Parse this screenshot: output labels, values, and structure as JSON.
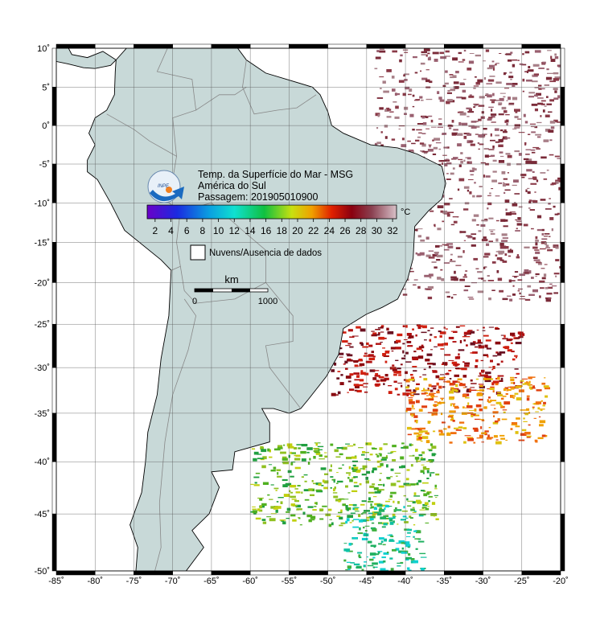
{
  "header": {
    "title": "Temp. da Superfície do Mar - MSG",
    "region": "América do Sul",
    "pass": "Passagem: 201905010900"
  },
  "logo": {
    "text": "INPE"
  },
  "colorbar": {
    "min": 1,
    "max": 32.5,
    "ticks": [
      2,
      4,
      6,
      8,
      10,
      12,
      14,
      16,
      18,
      20,
      22,
      24,
      26,
      28,
      30,
      32
    ],
    "unit": "°C"
  },
  "legend": {
    "text": "Nuvens/Ausencia de dados"
  },
  "scale_bar": {
    "unit": "km",
    "start": "0",
    "end": "1000"
  },
  "map": {
    "lon_range": [
      -85,
      -20
    ],
    "lat_range": [
      -50,
      10
    ],
    "lon_ticks": [
      {
        "value": -85,
        "label": "-85˚"
      },
      {
        "value": -80,
        "label": "-80˚"
      },
      {
        "value": -75,
        "label": "-75˚"
      },
      {
        "value": -70,
        "label": "-70˚"
      },
      {
        "value": -65,
        "label": "-65˚"
      },
      {
        "value": -60,
        "label": "-60˚"
      },
      {
        "value": -55,
        "label": "-55˚"
      },
      {
        "value": -50,
        "label": "-50˚"
      },
      {
        "value": -45,
        "label": "-45˚"
      },
      {
        "value": -40,
        "label": "-40˚"
      },
      {
        "value": -35,
        "label": "-35˚"
      },
      {
        "value": -30,
        "label": "-30˚"
      },
      {
        "value": -25,
        "label": "-25˚"
      },
      {
        "value": -20,
        "label": "-20˚"
      }
    ],
    "lat_ticks": [
      {
        "value": 10,
        "label": "10˚"
      },
      {
        "value": 5,
        "label": "5˚"
      },
      {
        "value": 0,
        "label": "0˚"
      },
      {
        "value": -5,
        "label": "-5˚"
      },
      {
        "value": -10,
        "label": "-10˚"
      },
      {
        "value": -15,
        "label": "-15˚"
      },
      {
        "value": -20,
        "label": "-20˚"
      },
      {
        "value": -25,
        "label": "-25˚"
      },
      {
        "value": -30,
        "label": "-30˚"
      },
      {
        "value": -35,
        "label": "-35˚"
      },
      {
        "value": -40,
        "label": "-40˚"
      },
      {
        "value": -45,
        "label": "-45˚"
      },
      {
        "value": -50,
        "label": "-50˚"
      }
    ]
  }
}
